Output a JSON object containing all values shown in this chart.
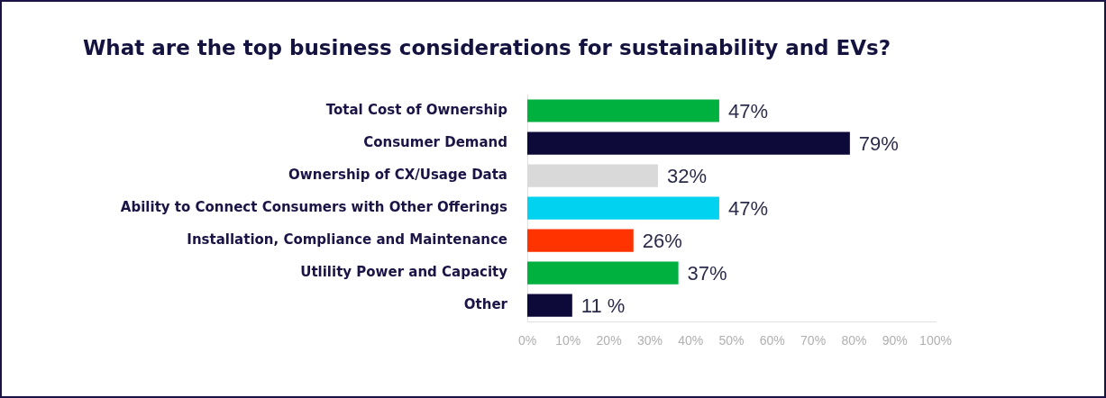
{
  "chart_data": {
    "type": "bar",
    "orientation": "horizontal",
    "title": "What are the top business considerations for sustainability and EVs?",
    "categories": [
      "Total Cost of Ownership",
      "Consumer Demand",
      "Ownership of CX/Usage Data",
      "Ability to Connect Consumers with Other Offerings",
      "Installation, Compliance and Maintenance",
      "Utlility Power and Capacity",
      "Other"
    ],
    "values": [
      47,
      79,
      32,
      47,
      26,
      37,
      11
    ],
    "colors": [
      "#00b140",
      "#0d0a3a",
      "#d9d9d9",
      "#00d2f0",
      "#ff3300",
      "#00b140",
      "#0d0a3a"
    ],
    "value_labels": [
      "47%",
      "79%",
      "32%",
      "47%",
      "26%",
      "37%",
      "11 %"
    ],
    "xlim": [
      0,
      100
    ],
    "xticks": [
      {
        "value": 0,
        "label": "0%"
      },
      {
        "value": 10,
        "label": "10%"
      },
      {
        "value": 20,
        "label": "20%"
      },
      {
        "value": 30,
        "label": "30%"
      },
      {
        "value": 40,
        "label": "40%"
      },
      {
        "value": 50,
        "label": "50%"
      },
      {
        "value": 60,
        "label": "60%"
      },
      {
        "value": 70,
        "label": "70%"
      },
      {
        "value": 80,
        "label": "80%"
      },
      {
        "value": 90,
        "label": "90%"
      },
      {
        "value": 100,
        "label": "100%"
      }
    ]
  }
}
